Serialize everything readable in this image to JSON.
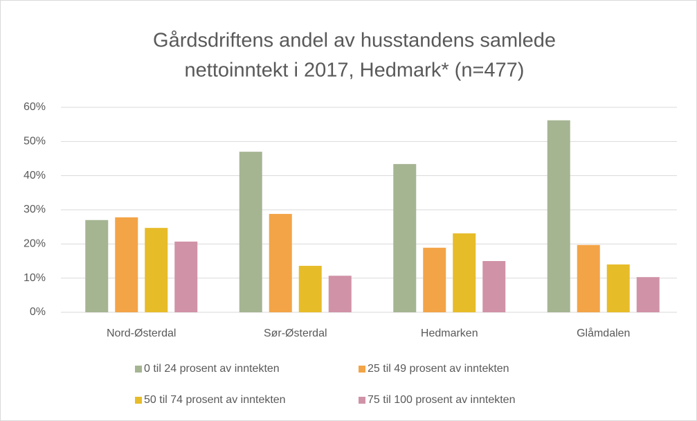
{
  "chart_data": {
    "type": "bar",
    "title": [
      "Gårdsdriftens andel av husstandens samlede",
      "nettoinntekt i 2017, Hedmark* (n=477)"
    ],
    "categories": [
      "Nord-Østerdal",
      "Sør-Østerdal",
      "Hedmarken",
      "Glåmdalen"
    ],
    "series": [
      {
        "name": "0 til 24 prosent av inntekten",
        "color": "#a5b592",
        "values": [
          27,
          47,
          43.4,
          56.2
        ]
      },
      {
        "name": "25 til 49 prosent av inntekten",
        "color": "#f3a447",
        "values": [
          27.8,
          28.8,
          18.9,
          19.7
        ]
      },
      {
        "name": "50 til 74 prosent av inntekten",
        "color": "#e7bc29",
        "values": [
          24.7,
          13.6,
          23.1,
          14
        ]
      },
      {
        "name": "75 til 100 prosent av inntekten",
        "color": "#d092a7",
        "values": [
          20.7,
          10.7,
          15,
          10.3
        ]
      }
    ],
    "ylim": [
      0,
      60
    ],
    "yticks": [
      {
        "value": 0,
        "label": "0%"
      },
      {
        "value": 10,
        "label": "10%"
      },
      {
        "value": 20,
        "label": "20%"
      },
      {
        "value": 30,
        "label": "30%"
      },
      {
        "value": 40,
        "label": "40%"
      },
      {
        "value": 50,
        "label": "50%"
      },
      {
        "value": 60,
        "label": "60%"
      }
    ],
    "grid": true,
    "legend": "bottom"
  }
}
